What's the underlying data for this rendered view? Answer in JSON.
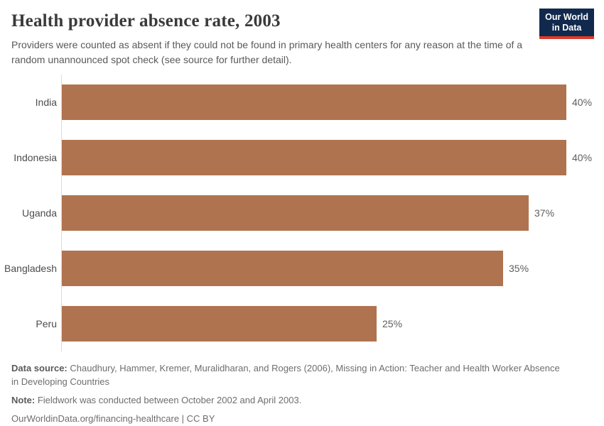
{
  "header": {
    "title": "Health provider absence rate, 2003",
    "subtitle": "Providers were counted as absent if they could not be found in primary health centers for any reason at the time of a random unannounced spot check (see source for further detail).",
    "logo": {
      "line1": "Our World",
      "line2": "in Data",
      "bg_color": "#12294e",
      "accent_color": "#dc3b2a"
    }
  },
  "chart_data": {
    "type": "bar",
    "orientation": "horizontal",
    "title": "Health provider absence rate, 2003",
    "categories": [
      "India",
      "Indonesia",
      "Uganda",
      "Bangladesh",
      "Peru"
    ],
    "values": [
      40,
      40,
      37,
      35,
      25
    ],
    "value_labels": [
      "40%",
      "40%",
      "37%",
      "35%",
      "25%"
    ],
    "unit": "%",
    "xlim": [
      0,
      40
    ],
    "grid": false,
    "legend": false,
    "bar_color": "#b0734f",
    "axis_line_color": "#dcdcdc"
  },
  "footer": {
    "data_source_label": "Data source:",
    "data_source_text": " Chaudhury, Hammer, Kremer, Muralidharan, and Rogers (2006), Missing in Action: Teacher and Health Worker Absence in Developing Countries",
    "note_label": "Note:",
    "note_text": " Fieldwork was conducted between October 2002 and April 2003.",
    "attribution_link": "OurWorldinData.org/financing-healthcare",
    "attribution_rest": " | CC BY"
  }
}
